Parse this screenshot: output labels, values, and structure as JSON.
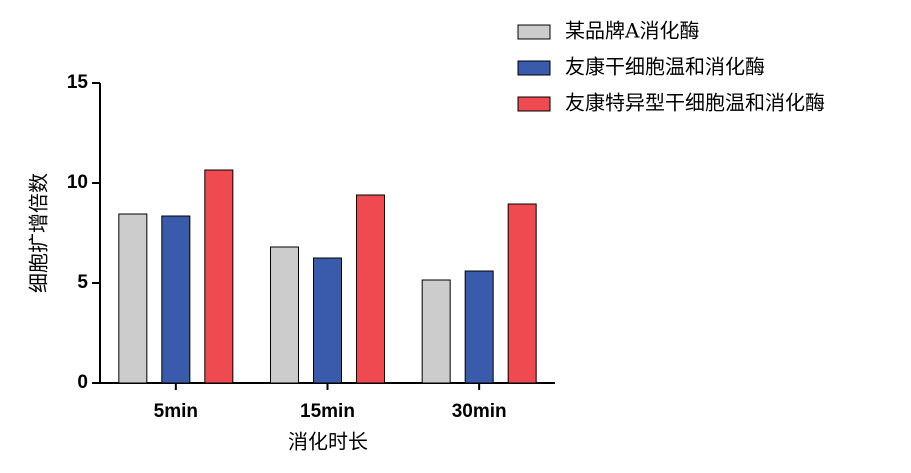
{
  "chart_data": {
    "type": "bar",
    "x_label": "消化时长",
    "y_label": "细胞扩增倍数",
    "categories": [
      "5min",
      "15min",
      "30min"
    ],
    "series": [
      {
        "name": "某品牌A消化酶",
        "color": "#cccccc",
        "values": [
          8.45,
          6.8,
          5.15
        ]
      },
      {
        "name": "友康干细胞温和消化酶",
        "color": "#3a5bab",
        "values": [
          8.35,
          6.25,
          5.6
        ]
      },
      {
        "name": "友康特异型干细胞温和消化酶",
        "color": "#ef4a50",
        "values": [
          10.65,
          9.4,
          8.95
        ]
      }
    ],
    "ylim": [
      0,
      15
    ],
    "yticks": [
      0,
      5,
      10,
      15
    ]
  }
}
